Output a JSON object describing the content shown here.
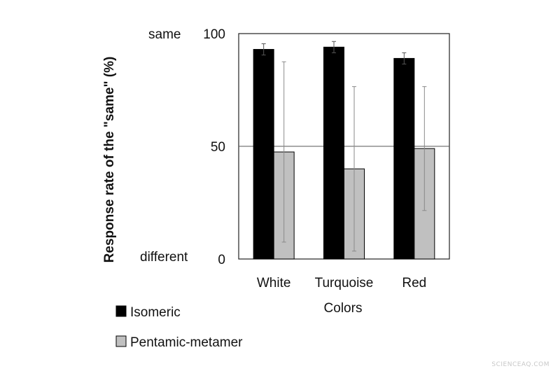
{
  "chart_data": {
    "type": "bar",
    "title": "",
    "xlabel": "Colors",
    "ylabel": "Response rate of the \"same\" (%)",
    "categories": [
      "White",
      "Turquoise",
      "Red"
    ],
    "ylim": [
      0,
      100
    ],
    "yticks": [
      0,
      50,
      100
    ],
    "y_annotations": {
      "top": "same",
      "bottom": "different"
    },
    "reference_line": 50,
    "grid": false,
    "legend_position": "bottom-left",
    "series": [
      {
        "name": "Isomeric",
        "color": "#000000",
        "values": [
          93,
          94,
          89
        ],
        "errors": [
          2.5,
          2.5,
          2.5
        ]
      },
      {
        "name": "Pentamic-metamer",
        "color": "#c0c0c0",
        "values": [
          47.5,
          40,
          49
        ],
        "errors": [
          40,
          36.5,
          27.5
        ]
      }
    ]
  },
  "watermark": "SCIENCEAQ.COM"
}
